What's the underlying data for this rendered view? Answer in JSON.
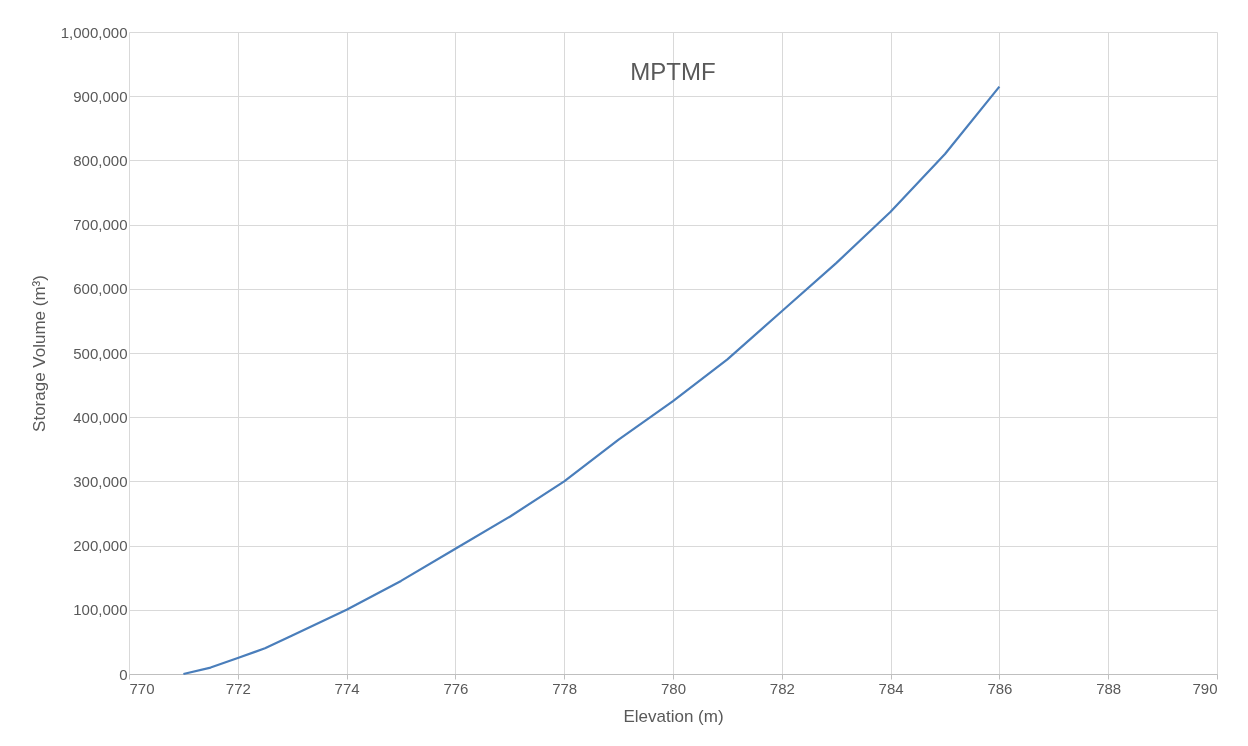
{
  "chart_data": {
    "type": "line",
    "title": "MPTMF",
    "xlabel": "Elevation (m)",
    "ylabel": "Storage Volume (m³)",
    "x": [
      771,
      771.5,
      772,
      772.5,
      773,
      774,
      775,
      776,
      777,
      778,
      779,
      780,
      781,
      782,
      783,
      784,
      785,
      786
    ],
    "series": [
      {
        "color": "#4a7ebb",
        "values": [
          0,
          10000,
          25000,
          40000,
          60000,
          100000,
          145000,
          195000,
          245000,
          300000,
          365000,
          425000,
          490000,
          565000,
          640000,
          720000,
          810000,
          915000
        ]
      }
    ],
    "xlim": [
      770,
      790
    ],
    "xticks": [
      770,
      772,
      774,
      776,
      778,
      780,
      782,
      784,
      786,
      788,
      790
    ],
    "ylim": [
      0,
      1000000
    ],
    "yticks": [
      {
        "value": 0,
        "label": "0"
      },
      {
        "value": 100000,
        "label": "100,000"
      },
      {
        "value": 200000,
        "label": "200,000"
      },
      {
        "value": 300000,
        "label": "300,000"
      },
      {
        "value": 400000,
        "label": "400,000"
      },
      {
        "value": 500000,
        "label": "500,000"
      },
      {
        "value": 600000,
        "label": "600,000"
      },
      {
        "value": 700000,
        "label": "700,000"
      },
      {
        "value": 800000,
        "label": "800,000"
      },
      {
        "value": 900000,
        "label": "900,000"
      },
      {
        "value": 1000000,
        "label": "1,000,000"
      }
    ],
    "grid": true,
    "marker": "none",
    "line_style": "solid"
  }
}
